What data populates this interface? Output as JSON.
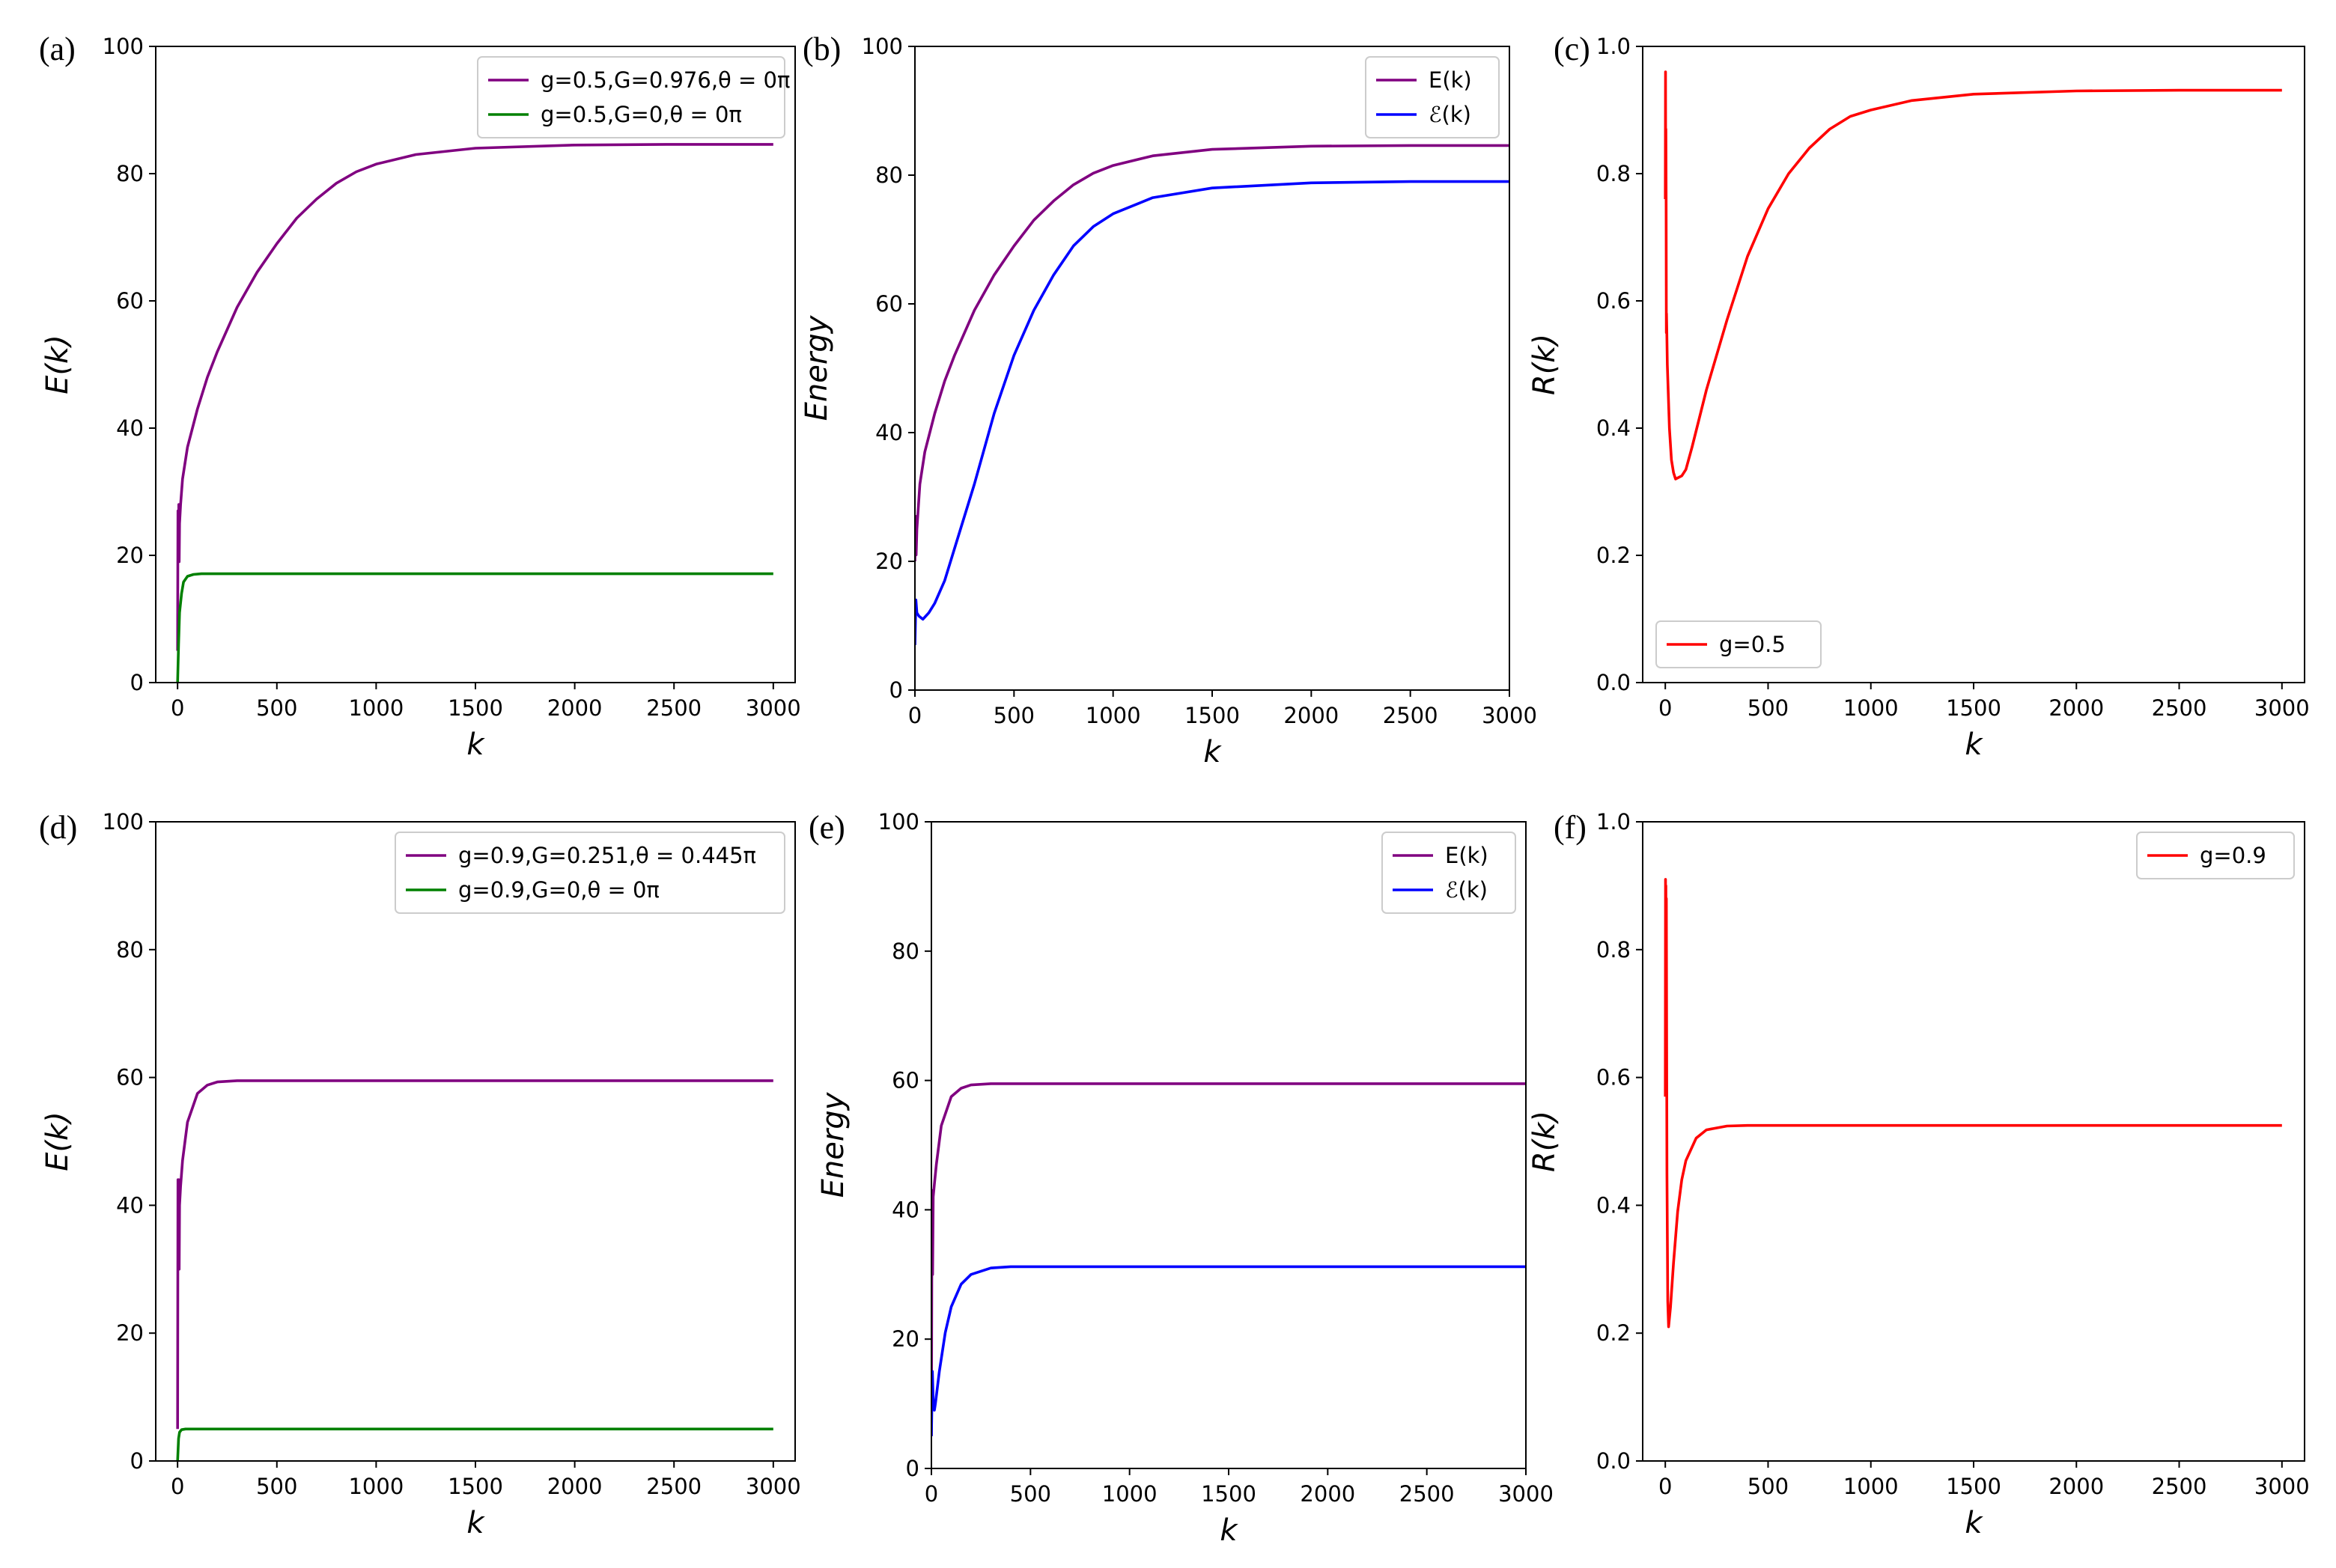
{
  "figure": {
    "panels": [
      {
        "label": "(a)",
        "xlabel": "k",
        "ylabel": "E(k)",
        "xlim": [
          -110,
          3110
        ],
        "ylim": [
          0,
          100
        ],
        "xticks": [
          0,
          500,
          1000,
          1500,
          2000,
          2500,
          3000
        ],
        "yticks": [
          0,
          20,
          40,
          60,
          80,
          100
        ],
        "ytick_decimals": 0,
        "legend_position": "top-right",
        "series": [
          {
            "name": "g=0.5,G=0.976,θ = 0π",
            "color": "#800080",
            "points": [
              [
                0,
                5
              ],
              [
                2,
                27
              ],
              [
                4,
                20
              ],
              [
                6,
                28
              ],
              [
                8,
                19
              ],
              [
                10,
                25
              ],
              [
                15,
                28
              ],
              [
                25,
                32
              ],
              [
                50,
                37
              ],
              [
                100,
                43
              ],
              [
                150,
                48
              ],
              [
                200,
                52
              ],
              [
                300,
                59
              ],
              [
                400,
                64.5
              ],
              [
                500,
                69
              ],
              [
                600,
                73
              ],
              [
                700,
                76
              ],
              [
                800,
                78.5
              ],
              [
                900,
                80.3
              ],
              [
                1000,
                81.5
              ],
              [
                1200,
                83
              ],
              [
                1500,
                84
              ],
              [
                2000,
                84.5
              ],
              [
                2500,
                84.6
              ],
              [
                3000,
                84.6
              ]
            ]
          },
          {
            "name": "g=0.5,G=0,θ = 0π",
            "color": "#008000",
            "points": [
              [
                0,
                0
              ],
              [
                5,
                6
              ],
              [
                10,
                11
              ],
              [
                20,
                14
              ],
              [
                30,
                15.8
              ],
              [
                50,
                16.7
              ],
              [
                80,
                17
              ],
              [
                120,
                17.1
              ],
              [
                3000,
                17.1
              ]
            ]
          }
        ]
      },
      {
        "label": "(b)",
        "xlabel": "k",
        "ylabel": "Energy",
        "xlim": [
          0,
          3000
        ],
        "ylim": [
          0,
          100
        ],
        "xticks": [
          0,
          500,
          1000,
          1500,
          2000,
          2500,
          3000
        ],
        "yticks": [
          0,
          20,
          40,
          60,
          80,
          100
        ],
        "ytick_decimals": 0,
        "legend_position": "top-right",
        "series": [
          {
            "name": "E(k)",
            "color": "#800080",
            "points": [
              [
                0,
                20
              ],
              [
                3,
                27
              ],
              [
                6,
                21
              ],
              [
                10,
                25
              ],
              [
                25,
                32
              ],
              [
                50,
                37
              ],
              [
                100,
                43
              ],
              [
                150,
                48
              ],
              [
                200,
                52
              ],
              [
                300,
                59
              ],
              [
                400,
                64.5
              ],
              [
                500,
                69
              ],
              [
                600,
                73
              ],
              [
                700,
                76
              ],
              [
                800,
                78.5
              ],
              [
                900,
                80.3
              ],
              [
                1000,
                81.5
              ],
              [
                1200,
                83
              ],
              [
                1500,
                84
              ],
              [
                2000,
                84.5
              ],
              [
                2500,
                84.6
              ],
              [
                3000,
                84.6
              ]
            ]
          },
          {
            "name": "ℰ(k)",
            "color": "#0000ff",
            "points": [
              [
                0,
                7
              ],
              [
                5,
                14
              ],
              [
                10,
                12
              ],
              [
                20,
                11.5
              ],
              [
                40,
                11
              ],
              [
                70,
                12
              ],
              [
                100,
                13.5
              ],
              [
                150,
                17
              ],
              [
                200,
                22
              ],
              [
                300,
                32
              ],
              [
                400,
                43
              ],
              [
                500,
                52
              ],
              [
                600,
                59
              ],
              [
                700,
                64.5
              ],
              [
                800,
                69
              ],
              [
                900,
                72
              ],
              [
                1000,
                74
              ],
              [
                1200,
                76.5
              ],
              [
                1500,
                78
              ],
              [
                2000,
                78.8
              ],
              [
                2500,
                79
              ],
              [
                3000,
                79
              ]
            ]
          }
        ]
      },
      {
        "label": "(c)",
        "xlabel": "k",
        "ylabel": "R(k)",
        "xlim": [
          -110,
          3110
        ],
        "ylim": [
          0,
          1.0
        ],
        "xticks": [
          0,
          500,
          1000,
          1500,
          2000,
          2500,
          3000
        ],
        "yticks": [
          0.0,
          0.2,
          0.4,
          0.6,
          0.8,
          1.0
        ],
        "ytick_decimals": 1,
        "legend_position": "bottom-left",
        "series": [
          {
            "name": "g=0.5",
            "color": "#ff0000",
            "points": [
              [
                0,
                0.76
              ],
              [
                1,
                0.96
              ],
              [
                2,
                0.8
              ],
              [
                3,
                0.87
              ],
              [
                4,
                0.76
              ],
              [
                5,
                0.55
              ],
              [
                6,
                0.58
              ],
              [
                7,
                0.56
              ],
              [
                10,
                0.5
              ],
              [
                20,
                0.4
              ],
              [
                30,
                0.35
              ],
              [
                40,
                0.33
              ],
              [
                50,
                0.32
              ],
              [
                80,
                0.325
              ],
              [
                100,
                0.335
              ],
              [
                130,
                0.37
              ],
              [
                200,
                0.46
              ],
              [
                300,
                0.57
              ],
              [
                400,
                0.67
              ],
              [
                500,
                0.745
              ],
              [
                600,
                0.8
              ],
              [
                700,
                0.84
              ],
              [
                800,
                0.87
              ],
              [
                900,
                0.89
              ],
              [
                1000,
                0.9
              ],
              [
                1200,
                0.915
              ],
              [
                1500,
                0.925
              ],
              [
                2000,
                0.93
              ],
              [
                2500,
                0.931
              ],
              [
                3000,
                0.931
              ]
            ]
          }
        ]
      },
      {
        "label": "(d)",
        "xlabel": "k",
        "ylabel": "E(k)",
        "xlim": [
          -110,
          3110
        ],
        "ylim": [
          0,
          100
        ],
        "xticks": [
          0,
          500,
          1000,
          1500,
          2000,
          2500,
          3000
        ],
        "yticks": [
          0,
          20,
          40,
          60,
          80,
          100
        ],
        "ytick_decimals": 0,
        "legend_position": "top-right",
        "series": [
          {
            "name": "g=0.9,G=0.251,θ = 0.445π",
            "color": "#800080",
            "points": [
              [
                0,
                5
              ],
              [
                2,
                44
              ],
              [
                4,
                30
              ],
              [
                6,
                44
              ],
              [
                8,
                30
              ],
              [
                10,
                40
              ],
              [
                15,
                43
              ],
              [
                25,
                47
              ],
              [
                50,
                53
              ],
              [
                100,
                57.5
              ],
              [
                150,
                58.8
              ],
              [
                200,
                59.3
              ],
              [
                300,
                59.5
              ],
              [
                3000,
                59.5
              ]
            ]
          },
          {
            "name": "g=0.9,G=0,θ = 0π",
            "color": "#008000",
            "points": [
              [
                0,
                0
              ],
              [
                5,
                3.5
              ],
              [
                10,
                4.5
              ],
              [
                20,
                4.9
              ],
              [
                40,
                5
              ],
              [
                3000,
                5
              ]
            ]
          }
        ]
      },
      {
        "label": "(e)",
        "xlabel": "k",
        "ylabel": "Energy",
        "xlim": [
          0,
          3000
        ],
        "ylim": [
          0,
          100
        ],
        "xticks": [
          0,
          500,
          1000,
          1500,
          2000,
          2500,
          3000
        ],
        "yticks": [
          0,
          20,
          40,
          60,
          80,
          100
        ],
        "ytick_decimals": 0,
        "legend_position": "top-right",
        "series": [
          {
            "name": "E(k)",
            "color": "#800080",
            "points": [
              [
                0,
                5
              ],
              [
                3,
                43
              ],
              [
                6,
                30
              ],
              [
                9,
                42
              ],
              [
                15,
                44
              ],
              [
                25,
                47
              ],
              [
                50,
                53
              ],
              [
                100,
                57.5
              ],
              [
                150,
                58.8
              ],
              [
                200,
                59.3
              ],
              [
                300,
                59.5
              ],
              [
                3000,
                59.5
              ]
            ]
          },
          {
            "name": "ℰ(k)",
            "color": "#0000ff",
            "points": [
              [
                0,
                5
              ],
              [
                5,
                15
              ],
              [
                10,
                9.5
              ],
              [
                15,
                9
              ],
              [
                20,
                10
              ],
              [
                40,
                15
              ],
              [
                70,
                21
              ],
              [
                100,
                25
              ],
              [
                150,
                28.5
              ],
              [
                200,
                30
              ],
              [
                300,
                31
              ],
              [
                400,
                31.2
              ],
              [
                3000,
                31.2
              ]
            ]
          }
        ]
      },
      {
        "label": "(f)",
        "xlabel": "k",
        "ylabel": "R(k)",
        "xlim": [
          -110,
          3110
        ],
        "ylim": [
          0,
          1.0
        ],
        "xticks": [
          0,
          500,
          1000,
          1500,
          2000,
          2500,
          3000
        ],
        "yticks": [
          0.0,
          0.2,
          0.4,
          0.6,
          0.8,
          1.0
        ],
        "ytick_decimals": 1,
        "legend_position": "top-right",
        "series": [
          {
            "name": "g=0.9",
            "color": "#ff0000",
            "points": [
              [
                0,
                0.57
              ],
              [
                1,
                0.91
              ],
              [
                2,
                0.6
              ],
              [
                3,
                0.9
              ],
              [
                4,
                0.58
              ],
              [
                5,
                0.88
              ],
              [
                8,
                0.45
              ],
              [
                12,
                0.25
              ],
              [
                16,
                0.21
              ],
              [
                25,
                0.24
              ],
              [
                40,
                0.31
              ],
              [
                60,
                0.39
              ],
              [
                80,
                0.44
              ],
              [
                100,
                0.47
              ],
              [
                150,
                0.505
              ],
              [
                200,
                0.518
              ],
              [
                300,
                0.524
              ],
              [
                400,
                0.525
              ],
              [
                3000,
                0.525
              ]
            ]
          }
        ]
      }
    ]
  },
  "chart_data": [
    {
      "type": "line",
      "title": "(a)",
      "xlabel": "k",
      "ylabel": "E(k)",
      "xlim": [
        -110,
        3110
      ],
      "ylim": [
        0,
        100
      ],
      "series": [
        {
          "name": "g=0.5,G=0.976,θ = 0π",
          "final_value": 84.6
        },
        {
          "name": "g=0.5,G=0,θ = 0π",
          "final_value": 17.1
        }
      ]
    },
    {
      "type": "line",
      "title": "(b)",
      "xlabel": "k",
      "ylabel": "Energy",
      "xlim": [
        0,
        3000
      ],
      "ylim": [
        0,
        100
      ],
      "series": [
        {
          "name": "E(k)",
          "final_value": 84.6
        },
        {
          "name": "ℰ(k)",
          "final_value": 79
        }
      ]
    },
    {
      "type": "line",
      "title": "(c)",
      "xlabel": "k",
      "ylabel": "R(k)",
      "xlim": [
        -110,
        3110
      ],
      "ylim": [
        0,
        1.0
      ],
      "series": [
        {
          "name": "g=0.5",
          "min_value": 0.32,
          "final_value": 0.931
        }
      ]
    },
    {
      "type": "line",
      "title": "(d)",
      "xlabel": "k",
      "ylabel": "E(k)",
      "xlim": [
        -110,
        3110
      ],
      "ylim": [
        0,
        100
      ],
      "series": [
        {
          "name": "g=0.9,G=0.251,θ = 0.445π",
          "final_value": 59.5
        },
        {
          "name": "g=0.9,G=0,θ = 0π",
          "final_value": 5
        }
      ]
    },
    {
      "type": "line",
      "title": "(e)",
      "xlabel": "k",
      "ylabel": "Energy",
      "xlim": [
        0,
        3000
      ],
      "ylim": [
        0,
        100
      ],
      "series": [
        {
          "name": "E(k)",
          "final_value": 59.5
        },
        {
          "name": "ℰ(k)",
          "final_value": 31.2
        }
      ]
    },
    {
      "type": "line",
      "title": "(f)",
      "xlabel": "k",
      "ylabel": "R(k)",
      "xlim": [
        -110,
        3110
      ],
      "ylim": [
        0,
        1.0
      ],
      "series": [
        {
          "name": "g=0.9",
          "min_value": 0.21,
          "final_value": 0.525
        }
      ]
    }
  ]
}
